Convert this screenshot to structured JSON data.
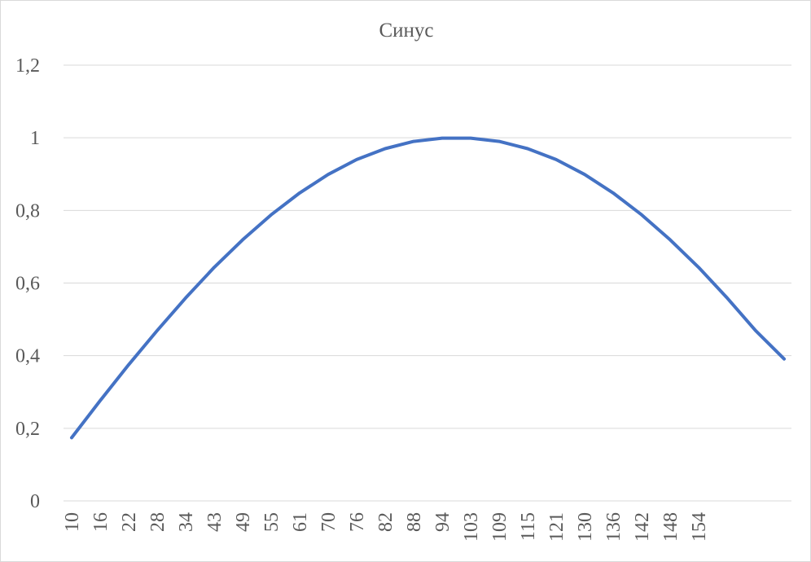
{
  "chart_data": {
    "type": "line",
    "title": "Синус",
    "xlabel": "",
    "ylabel": "",
    "ylim": [
      0,
      1.2
    ],
    "y_ticks": [
      {
        "value": 0,
        "label": "0"
      },
      {
        "value": 0.2,
        "label": "0,2"
      },
      {
        "value": 0.4,
        "label": "0,4"
      },
      {
        "value": 0.6,
        "label": "0,6"
      },
      {
        "value": 0.8,
        "label": "0,8"
      },
      {
        "value": 1.0,
        "label": "1"
      },
      {
        "value": 1.2,
        "label": "1,2"
      }
    ],
    "grid": true,
    "legend": "none",
    "color": "#4472c4",
    "x_labels": [
      "10",
      "16",
      "22",
      "28",
      "34",
      "43",
      "49",
      "55",
      "61",
      "70",
      "76",
      "82",
      "88",
      "94",
      "103",
      "109",
      "115",
      "121",
      "130",
      "136",
      "142",
      "148",
      "154"
    ],
    "x_label_note": "tick labels are shown for the first 23 of 26 category slots",
    "series": [
      {
        "name": "Синус",
        "values": [
          0.174,
          0.276,
          0.375,
          0.469,
          0.559,
          0.643,
          0.719,
          0.788,
          0.848,
          0.899,
          0.94,
          0.97,
          0.99,
          0.999,
          0.999,
          0.99,
          0.97,
          0.94,
          0.899,
          0.848,
          0.788,
          0.719,
          0.643,
          0.559,
          0.469,
          0.391
        ]
      }
    ]
  }
}
